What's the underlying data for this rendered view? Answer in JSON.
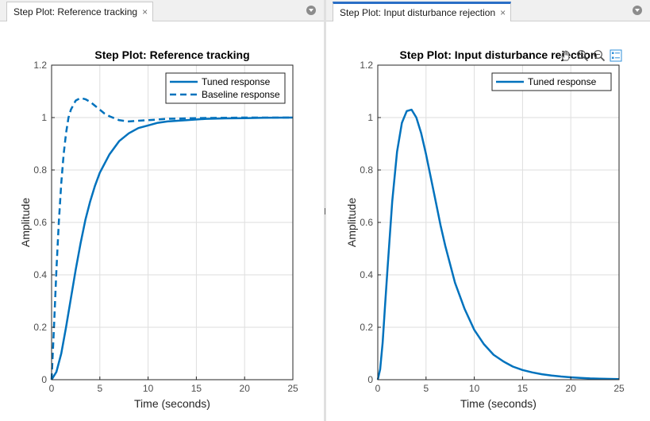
{
  "tabs": [
    {
      "label": "Step Plot: Reference tracking",
      "close": "×",
      "active": false
    },
    {
      "label": "Step Plot: Input disturbance rejection",
      "close": "×",
      "active": true
    }
  ],
  "colors": {
    "line": "#0072bd",
    "grid": "#dedede",
    "axes": "#262626",
    "tab_accent": "#2a6ec6"
  },
  "axes_toolbar": [
    "pan-hand-icon",
    "zoom-in-icon",
    "zoom-out-icon",
    "data-tips-icon"
  ],
  "chart_data": [
    {
      "type": "line",
      "title": "Step Plot: Reference tracking",
      "xlabel": "Time (seconds)",
      "ylabel": "Amplitude",
      "xlim": [
        0,
        25
      ],
      "ylim": [
        0,
        1.2
      ],
      "xticks": [
        "0",
        "5",
        "10",
        "15",
        "20",
        "25"
      ],
      "yticks": [
        "0",
        "0.2",
        "0.4",
        "0.6",
        "0.8",
        "1",
        "1.2"
      ],
      "grid": true,
      "legend_position": "top-right",
      "series": [
        {
          "name": "Tuned response",
          "style": "solid",
          "x": [
            0,
            0.5,
            1,
            1.5,
            2,
            2.5,
            3,
            3.5,
            4,
            4.5,
            5,
            6,
            7,
            8,
            9,
            10,
            11,
            12,
            14,
            16,
            18,
            20,
            22,
            25
          ],
          "y": [
            0,
            0.03,
            0.1,
            0.2,
            0.31,
            0.42,
            0.52,
            0.61,
            0.68,
            0.74,
            0.79,
            0.86,
            0.91,
            0.94,
            0.96,
            0.97,
            0.98,
            0.985,
            0.99,
            0.995,
            0.997,
            0.998,
            0.999,
            1.0
          ]
        },
        {
          "name": "Baseline response",
          "style": "dashed",
          "x": [
            0,
            0.25,
            0.5,
            0.75,
            1,
            1.25,
            1.5,
            1.75,
            2,
            2.5,
            3,
            3.5,
            4,
            4.5,
            5,
            5.5,
            6,
            7,
            8,
            9,
            10,
            12,
            15,
            20,
            25
          ],
          "y": [
            0,
            0.2,
            0.42,
            0.6,
            0.75,
            0.86,
            0.94,
            1.0,
            1.03,
            1.065,
            1.075,
            1.07,
            1.06,
            1.045,
            1.03,
            1.015,
            1.005,
            0.99,
            0.985,
            0.988,
            0.99,
            0.995,
            0.998,
            1.0,
            1.0
          ]
        }
      ]
    },
    {
      "type": "line",
      "title": "Step Plot: Input disturbance rejection",
      "xlabel": "Time (seconds)",
      "ylabel": "Amplitude",
      "xlim": [
        0,
        25
      ],
      "ylim": [
        0,
        1.2
      ],
      "xticks": [
        "0",
        "5",
        "10",
        "15",
        "20",
        "25"
      ],
      "yticks": [
        "0",
        "0.2",
        "0.4",
        "0.6",
        "0.8",
        "1",
        "1.2"
      ],
      "grid": true,
      "legend_position": "top-right",
      "series": [
        {
          "name": "Tuned response",
          "style": "solid",
          "x": [
            0,
            0.25,
            0.5,
            0.75,
            1,
            1.5,
            2,
            2.5,
            3,
            3.5,
            4,
            4.5,
            5,
            5.5,
            6,
            6.5,
            7,
            8,
            9,
            10,
            11,
            12,
            13,
            14,
            15,
            16,
            17,
            18,
            19,
            20,
            21,
            22,
            23,
            24,
            25
          ],
          "y": [
            0,
            0.04,
            0.14,
            0.28,
            0.42,
            0.68,
            0.87,
            0.98,
            1.025,
            1.03,
            1.0,
            0.94,
            0.86,
            0.77,
            0.68,
            0.59,
            0.51,
            0.37,
            0.27,
            0.19,
            0.135,
            0.095,
            0.07,
            0.05,
            0.037,
            0.028,
            0.021,
            0.016,
            0.012,
            0.009,
            0.007,
            0.005,
            0.004,
            0.003,
            0.002
          ]
        }
      ]
    }
  ]
}
